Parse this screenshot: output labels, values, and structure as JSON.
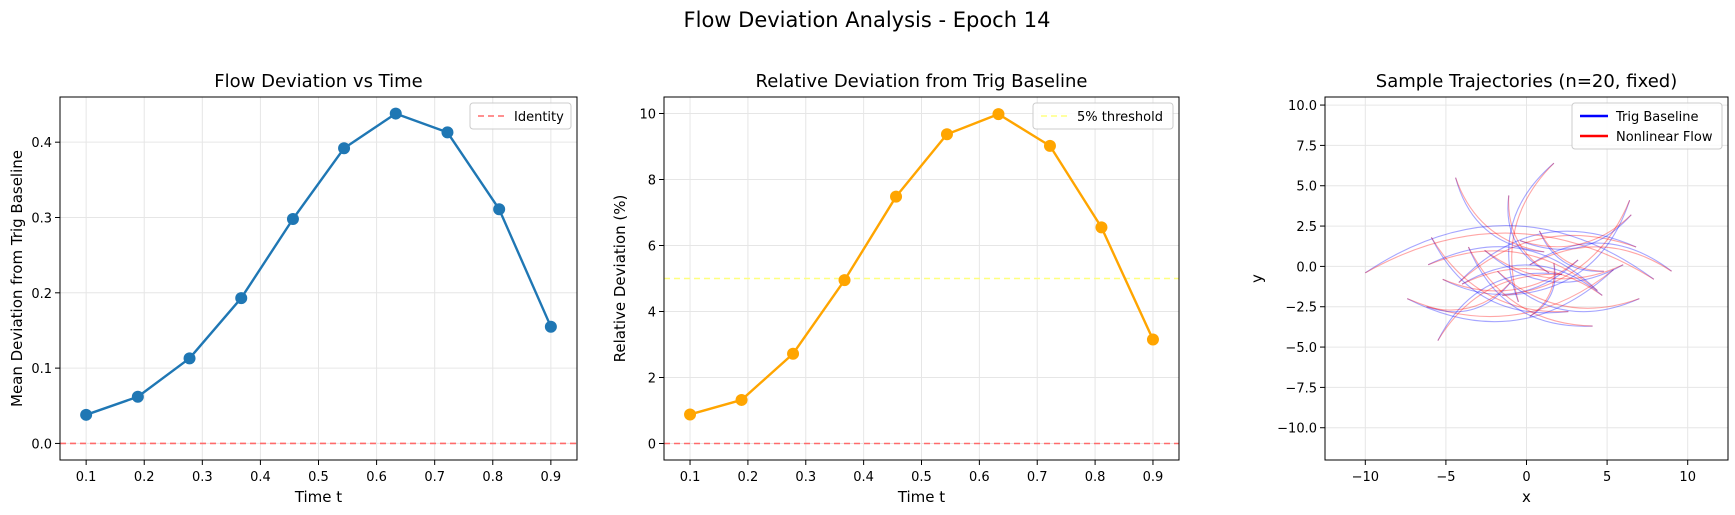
{
  "figure": {
    "suptitle": "Flow Deviation Analysis - Epoch 14"
  },
  "colors": {
    "series_blue": "#1f77b4",
    "series_orange": "#ffa500",
    "identity_line": "#ff6b6b",
    "threshold_line": "#ffff80",
    "trig_baseline": "#0000ff",
    "nonlinear_flow": "#ff0000",
    "grid": "#e6e6e6"
  },
  "chart_data": [
    {
      "type": "line",
      "title": "Flow Deviation vs Time",
      "xlabel": "Time t",
      "ylabel": "Mean Deviation from Trig Baseline",
      "xlim": [
        0.055,
        0.945
      ],
      "ylim": [
        -0.022,
        0.46
      ],
      "xticks": [
        "0.1",
        "0.2",
        "0.3",
        "0.4",
        "0.5",
        "0.6",
        "0.7",
        "0.8",
        "0.9"
      ],
      "yticks": [
        "0.0",
        "0.1",
        "0.2",
        "0.3",
        "0.4"
      ],
      "grid": true,
      "legend_position": "top-right",
      "series": [
        {
          "x": [
            0.1,
            0.189,
            0.278,
            0.367,
            0.456,
            0.544,
            0.633,
            0.722,
            0.811,
            0.9
          ],
          "y": [
            0.038,
            0.062,
            0.113,
            0.193,
            0.298,
            0.392,
            0.438,
            0.413,
            0.311,
            0.155
          ]
        }
      ],
      "reference_lines": [
        {
          "name": "Identity",
          "y": 0.0,
          "style": "dashed"
        }
      ]
    },
    {
      "type": "line",
      "title": "Relative Deviation from Trig Baseline",
      "xlabel": "Time t",
      "ylabel": "Relative Deviation (%)",
      "xlim": [
        0.055,
        0.945
      ],
      "ylim": [
        -0.5,
        10.5
      ],
      "xticks": [
        "0.1",
        "0.2",
        "0.3",
        "0.4",
        "0.5",
        "0.6",
        "0.7",
        "0.8",
        "0.9"
      ],
      "yticks": [
        "0",
        "2",
        "4",
        "6",
        "8",
        "10"
      ],
      "grid": true,
      "legend_position": "top-right",
      "series": [
        {
          "x": [
            0.1,
            0.189,
            0.278,
            0.367,
            0.456,
            0.544,
            0.633,
            0.722,
            0.811,
            0.9
          ],
          "y": [
            0.88,
            1.32,
            2.72,
            4.95,
            7.48,
            9.37,
            9.98,
            9.02,
            6.55,
            3.15
          ]
        }
      ],
      "reference_lines": [
        {
          "name": "5% threshold",
          "y": 5.0,
          "style": "dashed"
        },
        {
          "name": "",
          "y": 0.0,
          "style": "dashed"
        }
      ]
    },
    {
      "type": "line",
      "title": "Sample Trajectories (n=20, fixed)",
      "xlabel": "x",
      "ylabel": "y",
      "xlim": [
        -12.5,
        12.5
      ],
      "ylim": [
        -12,
        10.5
      ],
      "xticks": [
        "−10",
        "−5",
        "0",
        "5",
        "10"
      ],
      "yticks": [
        "−10.0",
        "−7.5",
        "−5.0",
        "−2.5",
        "0.0",
        "2.5",
        "5.0",
        "7.5",
        "10.0"
      ],
      "grid": true,
      "legend_position": "top-right",
      "legend": [
        "Trig Baseline",
        "Nonlinear Flow"
      ],
      "trajectories": [
        {
          "x0": 6.8,
          "y0": 1.2,
          "x1": -4.2,
          "y1": -1.0
        },
        {
          "x0": 5.4,
          "y0": -0.2,
          "x1": -7.4,
          "y1": -2.0
        },
        {
          "x0": 7.9,
          "y0": -0.8,
          "x1": -10.0,
          "y1": -0.4
        },
        {
          "x0": 3.2,
          "y0": 0.4,
          "x1": -5.2,
          "y1": -0.8
        },
        {
          "x0": 2.2,
          "y0": -0.5,
          "x1": -5.5,
          "y1": -4.6
        },
        {
          "x0": 1.1,
          "y0": 0.9,
          "x1": -4.4,
          "y1": 5.5
        },
        {
          "x0": -1.5,
          "y0": -1.8,
          "x1": 6.4,
          "y1": 4.1
        },
        {
          "x0": 0.2,
          "y0": 0.1,
          "x1": 9.0,
          "y1": -0.3
        },
        {
          "x0": 4.4,
          "y0": -1.5,
          "x1": -6.1,
          "y1": 0.1
        },
        {
          "x0": -0.5,
          "y0": -2.2,
          "x1": 1.7,
          "y1": 6.4
        },
        {
          "x0": -1.8,
          "y0": -0.3,
          "x1": 7.0,
          "y1": -2.0
        },
        {
          "x0": 2.6,
          "y0": -2.8,
          "x1": -5.9,
          "y1": 1.8
        },
        {
          "x0": -3.6,
          "y0": 1.2,
          "x1": 4.1,
          "y1": -3.7
        },
        {
          "x0": 1.4,
          "y0": -0.4,
          "x1": -1.1,
          "y1": 4.4
        },
        {
          "x0": -2.6,
          "y0": 1.0,
          "x1": 6.0,
          "y1": 0.1
        },
        {
          "x0": -1.0,
          "y0": -1.0,
          "x1": -6.2,
          "y1": -2.5
        },
        {
          "x0": 0.8,
          "y0": 2.2,
          "x1": 4.8,
          "y1": -0.3
        },
        {
          "x0": -4.0,
          "y0": -1.1,
          "x1": 4.7,
          "y1": -1.8
        },
        {
          "x0": -0.4,
          "y0": 1.6,
          "x1": 6.5,
          "y1": 3.2
        },
        {
          "x0": 1.7,
          "y0": 0.2,
          "x1": 0.2,
          "y1": -3.1
        }
      ]
    }
  ]
}
